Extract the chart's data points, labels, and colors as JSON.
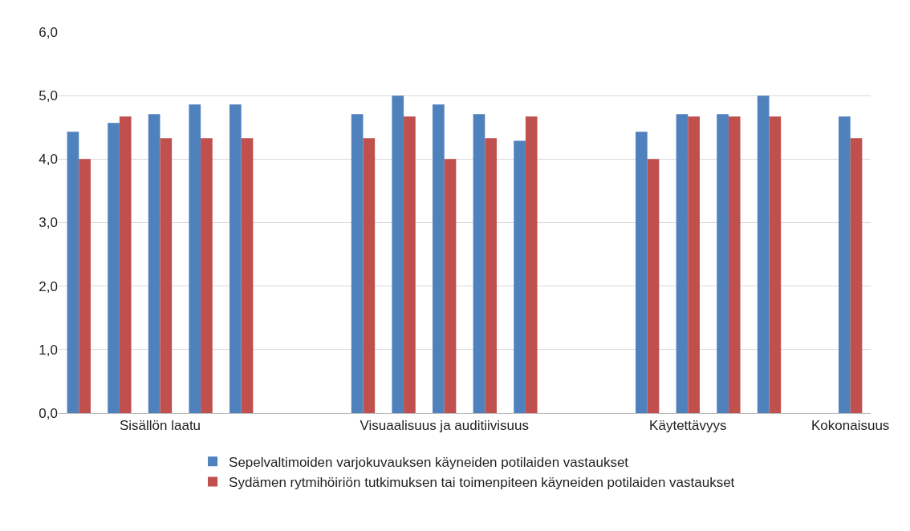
{
  "chart_data": {
    "type": "bar",
    "categories": [
      null,
      null,
      "Sisällön laatu",
      null,
      null,
      null,
      null,
      null,
      null,
      "Visuaalisuus ja auditiivisuus",
      null,
      null,
      null,
      null,
      null,
      "Käytettävyys",
      null,
      null,
      null,
      "Kokonaisuus"
    ],
    "series": [
      {
        "name": "Sepelvaltimoiden varjokuvauksen käyneiden potilaiden vastaukset",
        "color": "#4f81bd",
        "values": [
          4.43,
          4.57,
          4.71,
          4.86,
          4.86,
          null,
          null,
          4.71,
          5.0,
          4.86,
          4.71,
          4.29,
          null,
          null,
          4.43,
          4.71,
          4.71,
          5.0,
          null,
          4.67
        ]
      },
      {
        "name": "Sydämen rytmihöiriön tutkimuksen tai toimenpiteen käyneiden potilaiden vastaukset",
        "color": "#c0504d",
        "values": [
          4.0,
          4.67,
          4.33,
          4.33,
          4.33,
          null,
          null,
          4.33,
          4.67,
          4.0,
          4.33,
          4.67,
          null,
          null,
          4.0,
          4.67,
          4.67,
          4.67,
          null,
          4.33
        ]
      }
    ],
    "ylim": [
      0,
      6
    ],
    "yticks": [
      {
        "value": 0,
        "label": "0,0"
      },
      {
        "value": 1,
        "label": "1,0"
      },
      {
        "value": 2,
        "label": "2,0"
      },
      {
        "value": 3,
        "label": "3,0"
      },
      {
        "value": 4,
        "label": "4,0"
      },
      {
        "value": 5,
        "label": "5,0"
      },
      {
        "value": 6,
        "label": "6,0"
      }
    ],
    "grid": "y",
    "legend": "bottom"
  }
}
